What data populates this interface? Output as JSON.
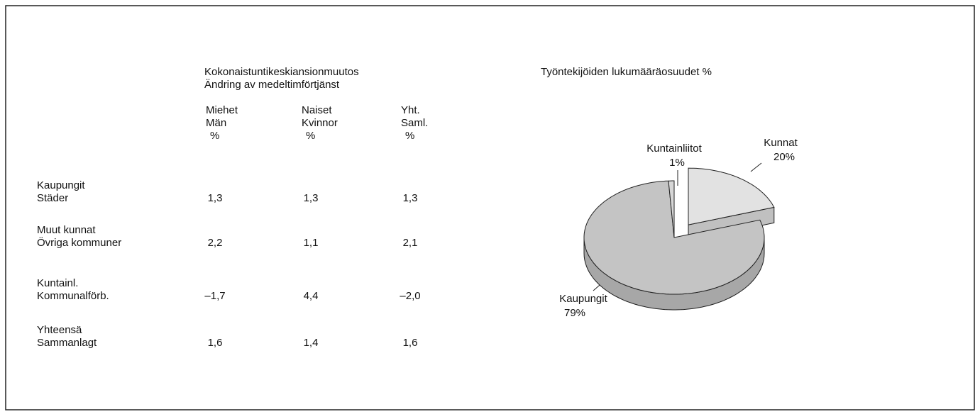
{
  "table": {
    "title": [
      "Kokonaistuntikeskiansionmuutos",
      "Ändring av medeltimförtjänst"
    ],
    "columns": [
      [
        "Miehet",
        "Män",
        "%"
      ],
      [
        "Naiset",
        "Kvinnor",
        "%"
      ],
      [
        "Yht.",
        "Saml.",
        "%"
      ]
    ],
    "rows": [
      {
        "label": [
          "Kaupungit",
          "Städer"
        ],
        "values": [
          "1,3",
          "1,3",
          "1,3"
        ]
      },
      {
        "label": [
          "Muut kunnat",
          "Övriga kommuner"
        ],
        "values": [
          "2,2",
          "1,1",
          "2,1"
        ]
      },
      {
        "label": [
          "Kuntainl.",
          "Kommunalförb."
        ],
        "values": [
          "–1,7",
          "4,4",
          "–2,0"
        ]
      },
      {
        "label": [
          "Yhteensä",
          "Sammanlagt"
        ],
        "values": [
          "1,6",
          "1,4",
          "1,6"
        ]
      }
    ]
  },
  "chart_data": {
    "type": "pie",
    "title": "Työntekijöiden lukumääräosuudet  %",
    "categories": [
      "Kunnat",
      "Kaupungit",
      "Kuntainliitot"
    ],
    "values": [
      20,
      79,
      1
    ],
    "value_labels": [
      "20%",
      "79%",
      "1%"
    ],
    "colors": [
      "#e2e2e2",
      "#c4c4c4",
      "#d6d6d6"
    ]
  }
}
